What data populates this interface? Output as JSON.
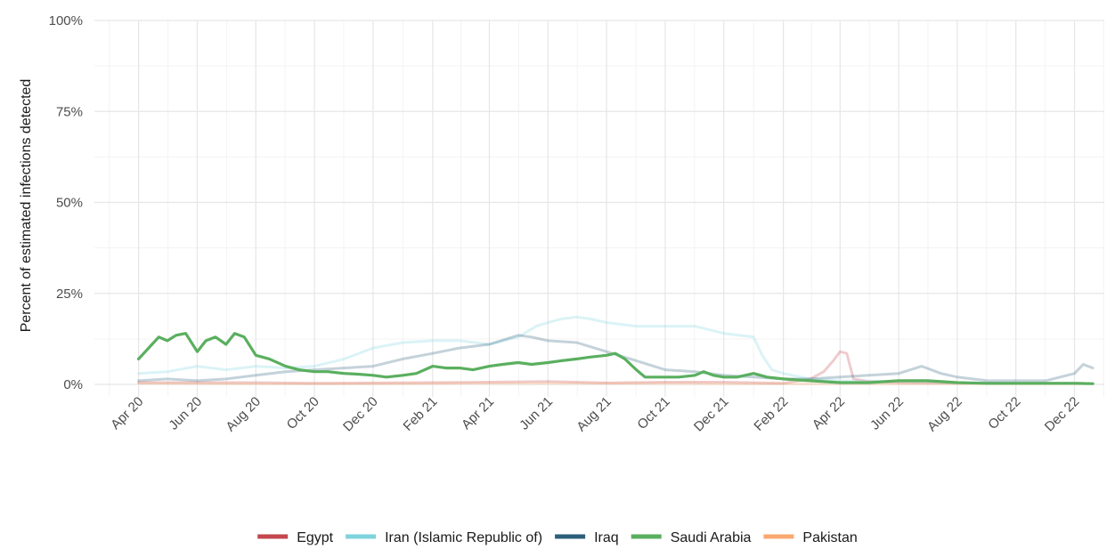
{
  "chart_data": {
    "type": "line",
    "ylabel": "Percent of estimated infections detected",
    "xlabel": "",
    "ylim": [
      0,
      100
    ],
    "y_ticks": [
      "0%",
      "25%",
      "50%",
      "75%",
      "100%"
    ],
    "y_tick_values": [
      0,
      25,
      50,
      75,
      100
    ],
    "x_range": [
      "2020-02-15",
      "2023-01-01"
    ],
    "x_ticks": [
      {
        "date": "2020-04-01",
        "label": "Apr 20"
      },
      {
        "date": "2020-06-01",
        "label": "Jun 20"
      },
      {
        "date": "2020-08-01",
        "label": "Aug 20"
      },
      {
        "date": "2020-10-01",
        "label": "Oct 20"
      },
      {
        "date": "2020-12-01",
        "label": "Dec 20"
      },
      {
        "date": "2021-02-01",
        "label": "Feb 21"
      },
      {
        "date": "2021-04-01",
        "label": "Apr 21"
      },
      {
        "date": "2021-06-01",
        "label": "Jun 21"
      },
      {
        "date": "2021-08-01",
        "label": "Aug 21"
      },
      {
        "date": "2021-10-01",
        "label": "Oct 21"
      },
      {
        "date": "2021-12-01",
        "label": "Dec 21"
      },
      {
        "date": "2022-02-01",
        "label": "Feb 22"
      },
      {
        "date": "2022-04-01",
        "label": "Apr 22"
      },
      {
        "date": "2022-06-01",
        "label": "Jun 22"
      },
      {
        "date": "2022-08-01",
        "label": "Aug 22"
      },
      {
        "date": "2022-10-01",
        "label": "Oct 22"
      },
      {
        "date": "2022-12-01",
        "label": "Dec 22"
      }
    ],
    "grid": true,
    "legend_position": "bottom",
    "highlight_series": "Saudi Arabia",
    "series": [
      {
        "name": "Egypt",
        "color": "#c4474e",
        "x": [
          "2020-04-01",
          "2020-06-01",
          "2020-08-01",
          "2020-10-01",
          "2020-12-01",
          "2021-02-01",
          "2021-04-01",
          "2021-06-01",
          "2021-08-01",
          "2021-10-01",
          "2021-12-01",
          "2022-02-01",
          "2022-03-01",
          "2022-03-15",
          "2022-03-25",
          "2022-04-01",
          "2022-04-08",
          "2022-04-15",
          "2022-05-01",
          "2022-06-01",
          "2022-08-01",
          "2022-10-01",
          "2022-12-10"
        ],
        "values": [
          0.5,
          0.5,
          0.5,
          0.3,
          0.4,
          0.5,
          0.6,
          0.8,
          0.4,
          0.6,
          0.6,
          0.3,
          1.5,
          3.5,
          6.5,
          9.0,
          8.5,
          1.5,
          0.8,
          0.5,
          0.4,
          0.3,
          0.3
        ]
      },
      {
        "name": "Iran (Islamic Republic of)",
        "color": "#7fd3dd",
        "x": [
          "2020-04-01",
          "2020-05-01",
          "2020-06-01",
          "2020-07-01",
          "2020-08-01",
          "2020-09-01",
          "2020-10-01",
          "2020-11-01",
          "2020-12-01",
          "2021-01-01",
          "2021-02-01",
          "2021-03-01",
          "2021-04-01",
          "2021-05-01",
          "2021-05-20",
          "2021-06-01",
          "2021-06-15",
          "2021-07-01",
          "2021-07-15",
          "2021-08-01",
          "2021-09-01",
          "2021-10-01",
          "2021-11-01",
          "2021-12-01",
          "2022-01-01",
          "2022-01-10",
          "2022-01-20",
          "2022-02-01",
          "2022-03-01",
          "2022-04-01",
          "2022-06-01",
          "2022-08-01",
          "2022-10-01",
          "2022-12-10"
        ],
        "values": [
          3,
          3.5,
          5,
          4,
          5,
          4.5,
          5,
          7,
          10,
          11.5,
          12,
          12,
          11,
          13,
          16,
          17,
          18,
          18.5,
          18,
          17,
          16,
          16,
          16,
          14,
          13,
          8,
          4,
          3,
          1.5,
          1,
          0.8,
          0.5,
          0.3,
          0.3
        ]
      },
      {
        "name": "Iraq",
        "color": "#2b5f7a",
        "x": [
          "2020-04-01",
          "2020-05-01",
          "2020-06-01",
          "2020-07-01",
          "2020-08-01",
          "2020-09-01",
          "2020-10-01",
          "2020-11-01",
          "2020-12-01",
          "2021-01-01",
          "2021-02-01",
          "2021-03-01",
          "2021-04-01",
          "2021-05-01",
          "2021-05-15",
          "2021-06-01",
          "2021-07-01",
          "2021-08-01",
          "2021-09-01",
          "2021-10-01",
          "2021-11-01",
          "2021-12-01",
          "2022-01-01",
          "2022-02-01",
          "2022-03-01",
          "2022-04-01",
          "2022-05-01",
          "2022-06-01",
          "2022-06-25",
          "2022-07-15",
          "2022-08-01",
          "2022-09-01",
          "2022-10-01",
          "2022-11-01",
          "2022-12-01",
          "2022-12-10",
          "2022-12-20"
        ],
        "values": [
          1,
          1.5,
          1,
          1.5,
          2.5,
          3.5,
          4,
          4.5,
          5,
          7,
          8.5,
          10,
          11,
          13.5,
          13,
          12,
          11.5,
          9,
          6.5,
          4,
          3.5,
          2.5,
          2,
          1.5,
          1.5,
          2,
          2.5,
          3,
          5,
          3,
          2,
          1,
          1,
          1,
          3,
          5.5,
          4.5
        ]
      },
      {
        "name": "Saudi Arabia",
        "color": "#5aaf5f",
        "x": [
          "2020-04-01",
          "2020-04-08",
          "2020-04-15",
          "2020-04-22",
          "2020-05-01",
          "2020-05-10",
          "2020-05-20",
          "2020-06-01",
          "2020-06-10",
          "2020-06-20",
          "2020-07-01",
          "2020-07-10",
          "2020-07-20",
          "2020-08-01",
          "2020-08-15",
          "2020-09-01",
          "2020-09-15",
          "2020-10-01",
          "2020-10-15",
          "2020-11-01",
          "2020-11-15",
          "2020-12-01",
          "2020-12-15",
          "2021-01-01",
          "2021-01-15",
          "2021-02-01",
          "2021-02-15",
          "2021-03-01",
          "2021-03-15",
          "2021-04-01",
          "2021-04-15",
          "2021-05-01",
          "2021-05-15",
          "2021-06-01",
          "2021-06-15",
          "2021-07-01",
          "2021-07-15",
          "2021-08-01",
          "2021-08-10",
          "2021-08-20",
          "2021-09-01",
          "2021-09-10",
          "2021-09-20",
          "2021-10-01",
          "2021-10-15",
          "2021-11-01",
          "2021-11-10",
          "2021-11-20",
          "2021-12-01",
          "2021-12-15",
          "2022-01-01",
          "2022-01-15",
          "2022-02-01",
          "2022-03-01",
          "2022-04-01",
          "2022-05-01",
          "2022-06-01",
          "2022-07-01",
          "2022-08-01",
          "2022-09-01",
          "2022-10-01",
          "2022-11-01",
          "2022-12-01",
          "2022-12-20"
        ],
        "values": [
          7,
          9,
          11,
          13,
          12,
          13.5,
          14,
          9,
          12,
          13,
          11,
          14,
          13,
          8,
          7,
          5,
          4,
          3.5,
          3.5,
          3,
          2.8,
          2.5,
          2,
          2.5,
          3,
          5,
          4.5,
          4.5,
          4,
          5,
          5.5,
          6,
          5.5,
          6,
          6.5,
          7,
          7.5,
          8,
          8.5,
          7,
          4,
          2,
          2,
          2,
          2,
          2.5,
          3.5,
          2.5,
          2,
          2,
          3,
          2,
          1.5,
          1,
          0.5,
          0.5,
          1,
          1,
          0.5,
          0.3,
          0.3,
          0.3,
          0.3,
          0.2
        ]
      },
      {
        "name": "Pakistan",
        "color": "#f9a870",
        "x": [
          "2020-04-01",
          "2020-08-01",
          "2020-12-01",
          "2021-04-01",
          "2021-08-01",
          "2021-12-01",
          "2022-04-01",
          "2022-08-01",
          "2022-12-20"
        ],
        "values": [
          0.3,
          0.2,
          0.2,
          0.3,
          0.3,
          0.2,
          0.2,
          0.2,
          0.2
        ]
      }
    ]
  }
}
